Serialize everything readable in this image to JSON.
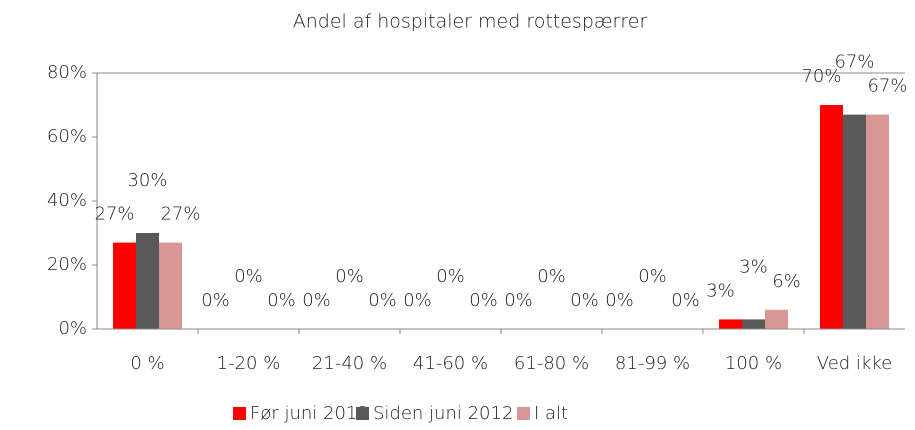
{
  "chart_data": {
    "type": "bar",
    "title": "Andel af hospitaler med rottespærrer",
    "categories": [
      "0 %",
      "1-20 %",
      "21-40 %",
      "41-60 %",
      "61-80 %",
      "81-99 %",
      "100 %",
      "Ved ikke"
    ],
    "series": [
      {
        "name": "Før juni 2012",
        "color": "#ff0000",
        "values": [
          27,
          0,
          0,
          0,
          0,
          0,
          3,
          70
        ],
        "value_labels": [
          "27%",
          "0%",
          "0%",
          "0%",
          "0%",
          "0%",
          "3%",
          "70%"
        ]
      },
      {
        "name": "Siden juni 2012",
        "color": "#595959",
        "values": [
          30,
          0,
          0,
          0,
          0,
          0,
          3,
          67
        ],
        "value_labels": [
          "30%",
          "0%",
          "0%",
          "0%",
          "0%",
          "0%",
          "3%",
          "67%"
        ]
      },
      {
        "name": "I alt",
        "color": "#d99694",
        "values": [
          27,
          0,
          0,
          0,
          0,
          0,
          6,
          67
        ],
        "value_labels": [
          "27%",
          "0%",
          "0%",
          "0%",
          "0%",
          "0%",
          "6%",
          "67%"
        ]
      }
    ],
    "ylim": [
      0,
      80
    ],
    "yticks": [
      {
        "value": 0,
        "label": "0%"
      },
      {
        "value": 20,
        "label": "20%"
      },
      {
        "value": 40,
        "label": "40%"
      },
      {
        "value": 60,
        "label": "60%"
      },
      {
        "value": 80,
        "label": "80%"
      }
    ],
    "grid": false,
    "legend": "bottom"
  }
}
